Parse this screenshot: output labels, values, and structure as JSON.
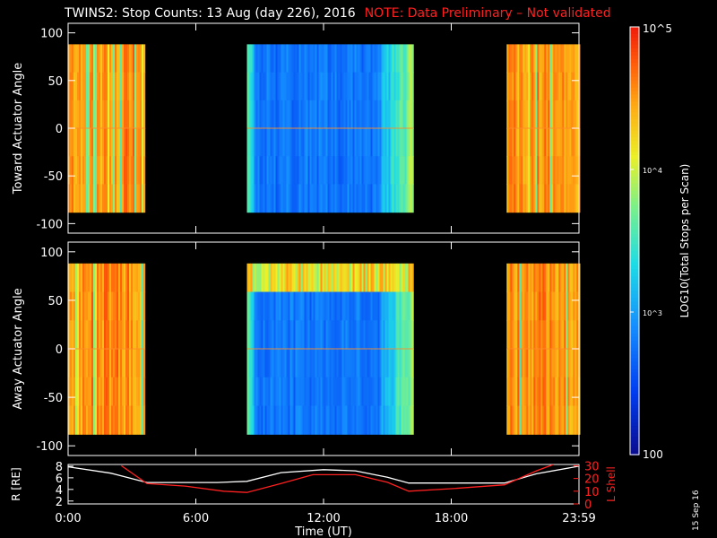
{
  "title": {
    "main": "TWINS2: Stop Counts: 13 Aug (day 226), 2016",
    "note": "NOTE: Data Preliminary – Not validated"
  },
  "datestamp": "15 Sep 16",
  "colors": {
    "background": "#000000",
    "axis": "#ffffff",
    "note": "#ff2020",
    "r_line": "#ffffff",
    "lshell_line": "#ff2020"
  },
  "chart_data": [
    {
      "type": "heatmap",
      "name": "toward",
      "ylabel": "Toward Actuator Angle",
      "yticks": [
        100,
        50,
        0,
        -50,
        -100
      ],
      "ylim": [
        -110,
        110
      ],
      "data_y_range": [
        -88,
        88
      ],
      "xlim_hours": [
        0,
        24
      ],
      "data_blocks_hours": [
        [
          0,
          3.6
        ],
        [
          8.4,
          16.2
        ],
        [
          20.6,
          24
        ]
      ],
      "scale": "log",
      "zrange": [
        100,
        100000
      ]
    },
    {
      "type": "heatmap",
      "name": "away",
      "ylabel": "Away Actuator Angle",
      "yticks": [
        100,
        50,
        0,
        -50,
        -100
      ],
      "ylim": [
        -110,
        110
      ],
      "data_y_range": [
        -88,
        88
      ],
      "xlim_hours": [
        0,
        24
      ],
      "data_blocks_hours": [
        [
          0,
          3.6
        ],
        [
          8.4,
          16.2
        ],
        [
          20.6,
          24
        ]
      ],
      "scale": "log",
      "zrange": [
        100,
        100000
      ]
    },
    {
      "type": "line",
      "name": "orbit",
      "xlabel": "Time (UT)",
      "xticks": [
        "0:00",
        "6:00",
        "12:00",
        "18:00",
        "23:59"
      ],
      "xtick_hours": [
        0,
        6,
        12,
        18,
        24
      ],
      "ylabel_left": "R [RE]",
      "yticks_left": [
        "2",
        "4",
        "6",
        "8"
      ],
      "ylim_left": [
        1.5,
        8.3
      ],
      "ylabel_right": "L Shell",
      "yticks_right": [
        "0",
        "10",
        "20",
        "30"
      ],
      "ylim_right": [
        0,
        31
      ],
      "series": [
        {
          "name": "R [RE]",
          "axis": "left",
          "color": "#ffffff",
          "x": [
            0,
            2,
            3.7,
            5,
            7,
            8.4,
            10,
            12,
            13.5,
            15,
            16,
            18,
            20.5,
            22,
            24
          ],
          "y": [
            7.9,
            6.8,
            5.2,
            5.2,
            5.2,
            5.4,
            6.9,
            7.4,
            7.2,
            6.1,
            5.1,
            5.1,
            5.1,
            6.7,
            8.0
          ]
        },
        {
          "name": "L Shell",
          "axis": "right",
          "color": "#ff2020",
          "x": [
            2.5,
            3.7,
            5.5,
            7.3,
            8.4,
            10,
            11.5,
            13.5,
            15,
            16,
            18,
            20.5,
            22,
            22.8
          ],
          "y": [
            30,
            16,
            14,
            10,
            9,
            16,
            23,
            23,
            17,
            10,
            12,
            15,
            26,
            31
          ]
        }
      ]
    },
    {
      "type": "colorbar",
      "label": "LOG10(Total Stops per Scan)",
      "ticks": [
        "10^5",
        "10^4",
        "10^3",
        "100"
      ],
      "tick_values": [
        100000,
        10000,
        1000,
        100
      ],
      "scale": "log"
    }
  ]
}
